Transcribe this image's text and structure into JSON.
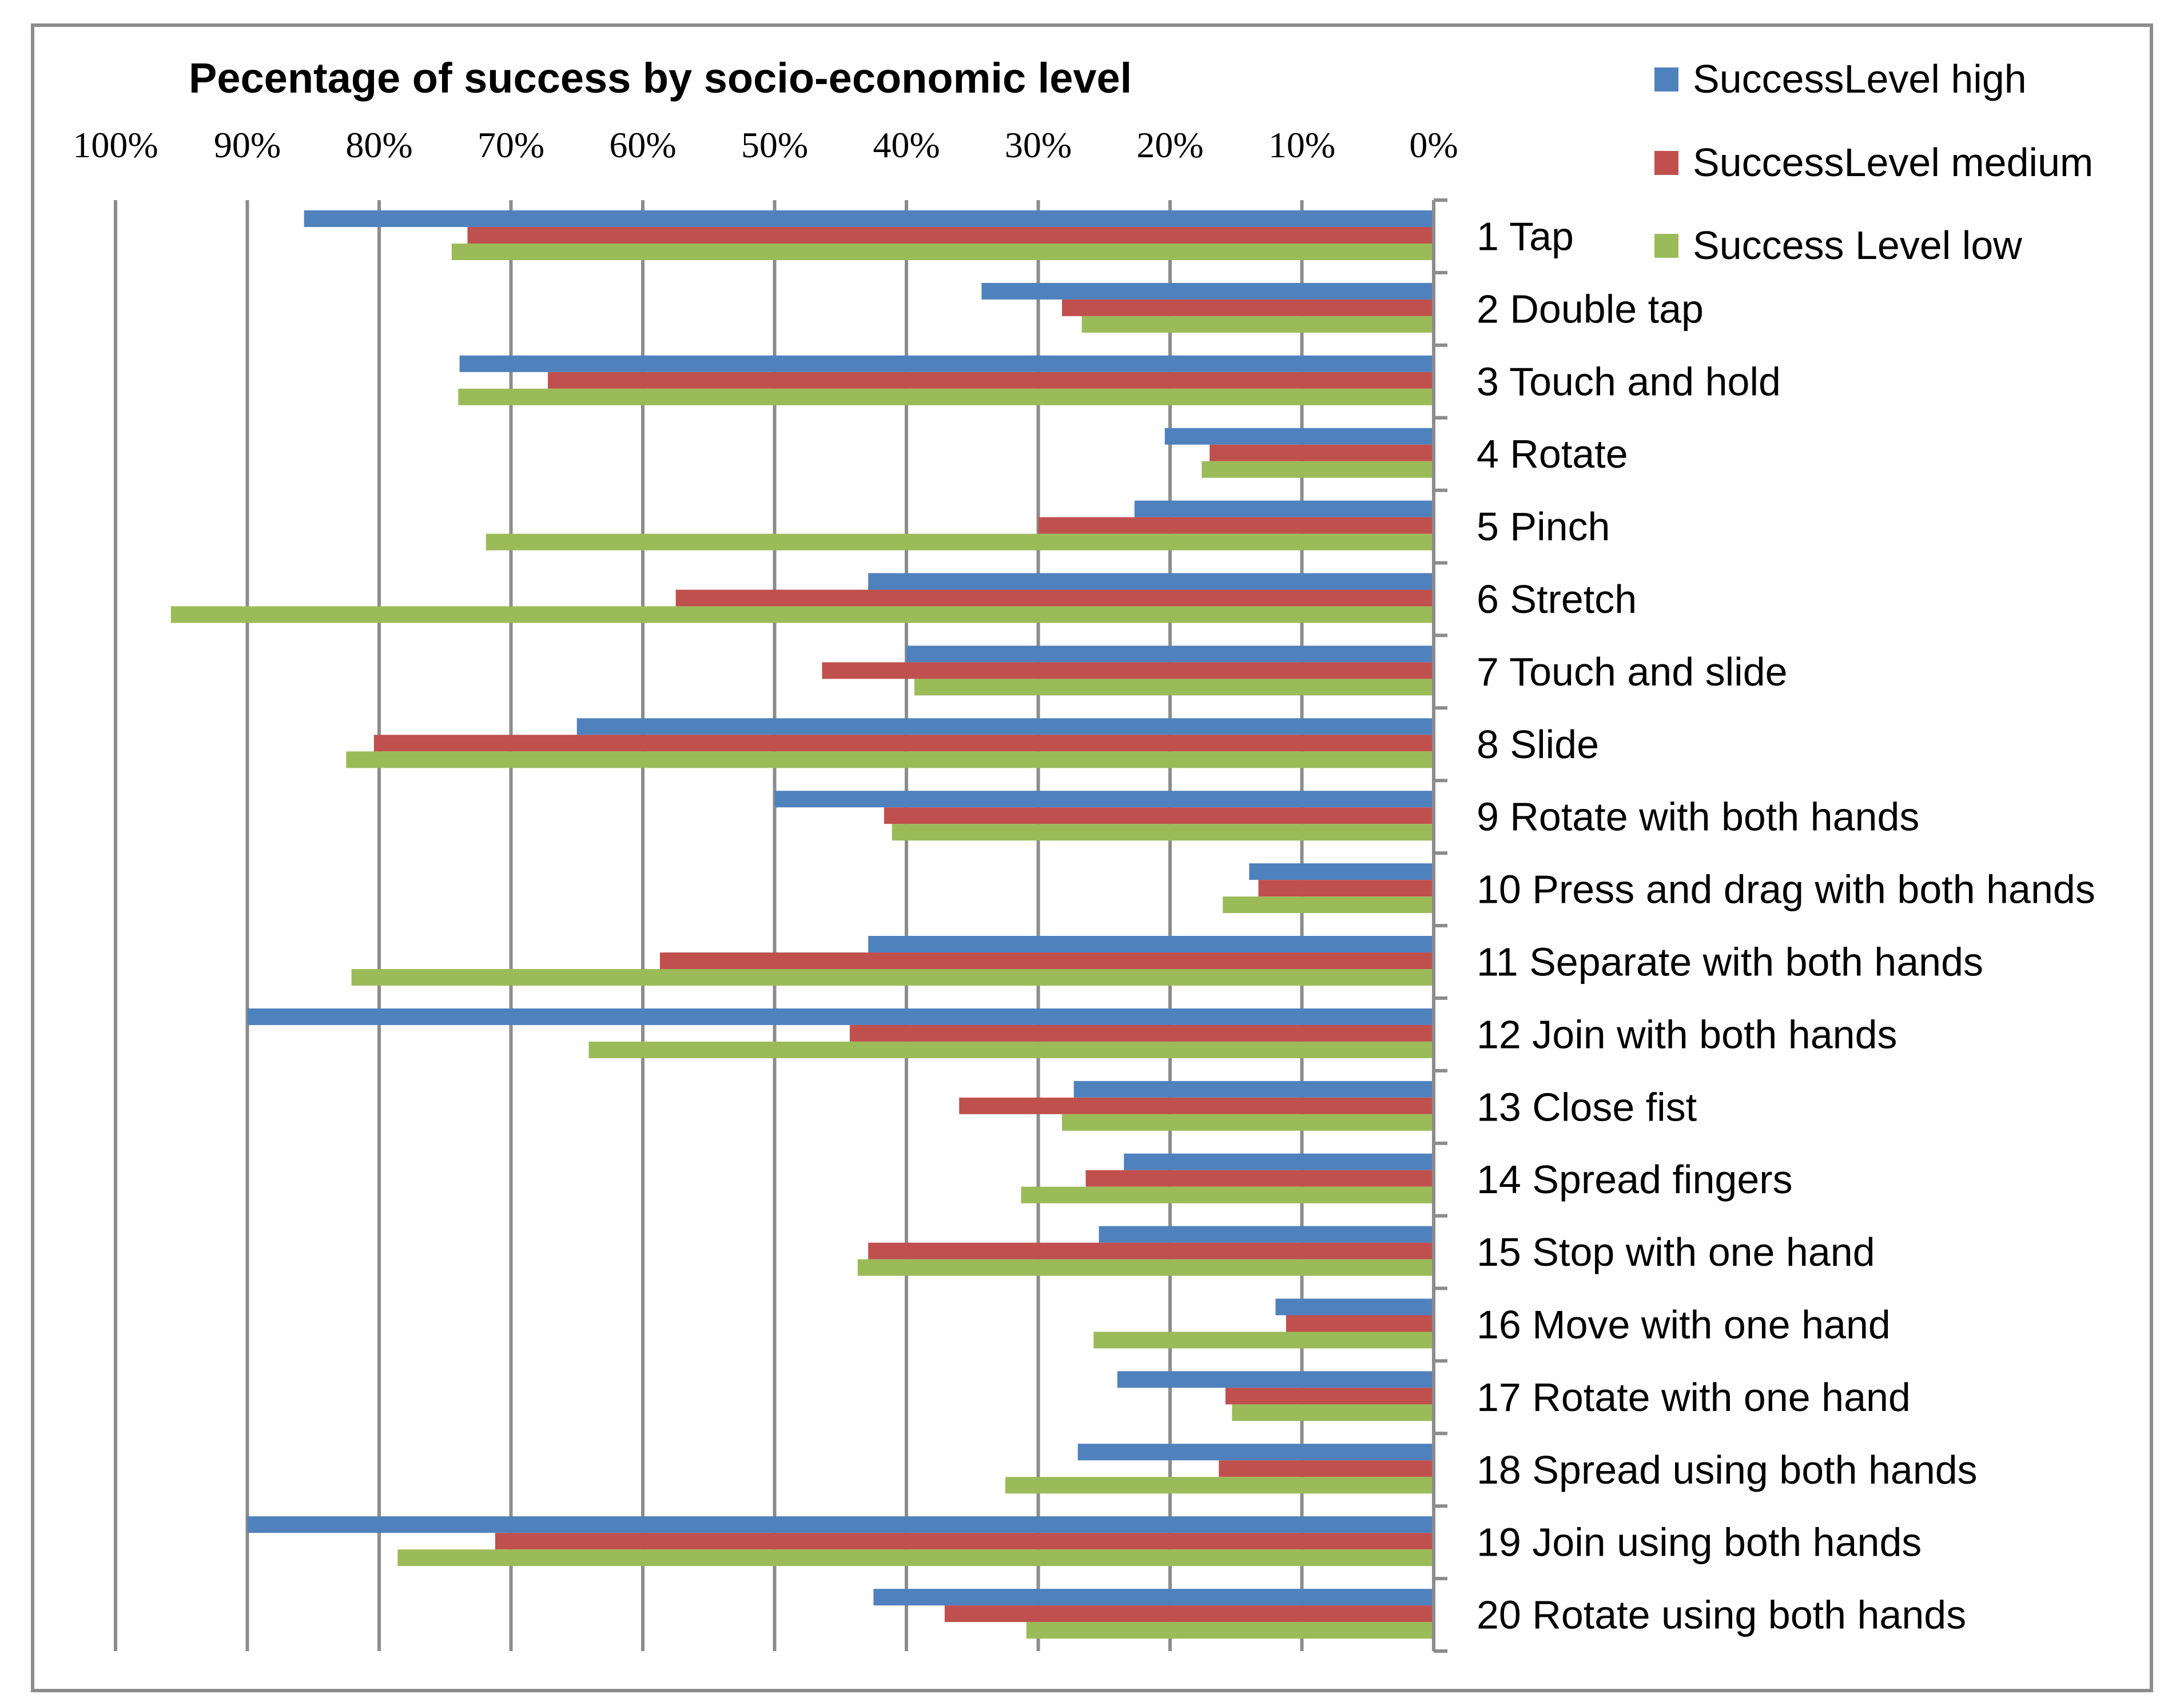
{
  "chart_data": {
    "type": "bar",
    "orientation": "horizontal",
    "x_axis_reversed": true,
    "title": "Pecentage of success by socio-economic level",
    "xlim": [
      0,
      100
    ],
    "x_ticks": [
      "0%",
      "10%",
      "20%",
      "30%",
      "40%",
      "50%",
      "60%",
      "70%",
      "80%",
      "90%",
      "100%"
    ],
    "legend_position": "top-right",
    "categories": [
      "1 Tap",
      "2 Double tap",
      "3 Touch and hold",
      "4 Rotate",
      "5 Pinch",
      "6 Stretch",
      "7 Touch and slide",
      "8 Slide",
      "9 Rotate with both hands",
      "10 Press and drag with both hands",
      "11 Separate with both hands",
      "12 Join with both hands",
      "13 Close fist",
      "14 Spread fingers",
      "15 Stop with one hand",
      "16 Move with one hand",
      "17 Rotate with one hand",
      "18 Spread using both hands",
      "19 Join using both hands",
      "20 Rotate using both hands"
    ],
    "series": [
      {
        "name": "SuccessLevel high",
        "color": "#4F81BD",
        "values": [
          85.7,
          34.3,
          73.9,
          20.4,
          22.7,
          42.9,
          40.0,
          65.0,
          50.0,
          14.0,
          42.9,
          90.0,
          27.3,
          23.5,
          25.4,
          12.0,
          24.0,
          27.0,
          90.0,
          42.5
        ]
      },
      {
        "name": "SuccessLevel medium",
        "color": "#C0504D",
        "values": [
          73.3,
          28.2,
          67.2,
          17.0,
          30.0,
          57.5,
          46.4,
          80.4,
          41.7,
          13.3,
          58.7,
          44.3,
          36.0,
          26.4,
          42.9,
          11.2,
          15.8,
          16.3,
          71.2,
          37.1
        ]
      },
      {
        "name": "Success Level low",
        "color": "#9BBB59",
        "values": [
          74.5,
          26.7,
          74.0,
          17.6,
          71.9,
          95.8,
          39.4,
          82.5,
          41.1,
          16.0,
          82.1,
          64.1,
          28.2,
          31.3,
          43.7,
          25.8,
          15.3,
          32.5,
          78.6,
          30.9
        ]
      }
    ]
  }
}
